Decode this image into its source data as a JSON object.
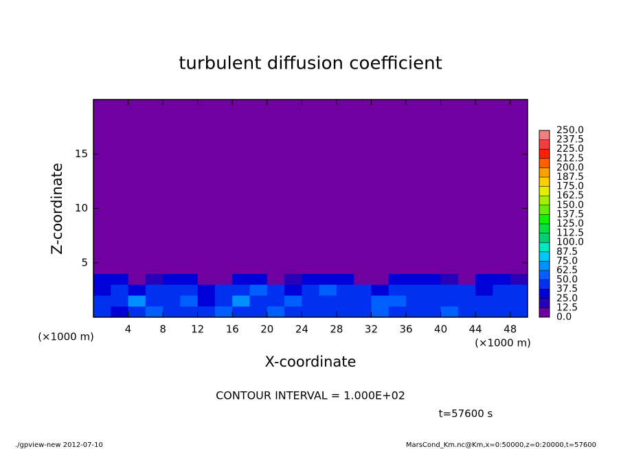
{
  "chart_data": {
    "type": "heatmap",
    "title": "turbulent diffusion coefficient",
    "x_label": "X-coordinate",
    "y_label": "Z-coordinate",
    "x_unit": "(×1000 m)",
    "y_unit": "(×1000 m)",
    "xlim": [
      0,
      50
    ],
    "ylim": [
      0,
      20
    ],
    "xticks": [
      4,
      8,
      12,
      16,
      20,
      24,
      28,
      32,
      36,
      40,
      44,
      48
    ],
    "yticks": [
      5,
      10,
      15
    ],
    "xbins": [
      0,
      2,
      4,
      6,
      8,
      10,
      12,
      14,
      16,
      18,
      20,
      22,
      24,
      26,
      28,
      30,
      32,
      34,
      36,
      38,
      40,
      42,
      44,
      46,
      48,
      50
    ],
    "ybins": [
      0,
      1,
      2,
      3,
      4,
      20
    ],
    "values": [
      [
        40,
        35,
        45,
        50,
        40,
        38,
        42,
        55,
        45,
        40,
        60,
        45,
        40,
        42,
        38,
        45,
        50,
        40,
        42,
        45,
        55,
        40,
        38,
        42,
        45
      ],
      [
        38,
        45,
        65,
        40,
        42,
        50,
        35,
        45,
        70,
        40,
        45,
        55,
        40,
        48,
        42,
        40,
        50,
        60,
        45,
        40,
        42,
        48,
        40,
        38,
        45
      ],
      [
        35,
        40,
        30,
        38,
        45,
        40,
        35,
        42,
        48,
        55,
        40,
        35,
        45,
        50,
        38,
        42,
        35,
        45,
        40,
        38,
        45,
        40,
        35,
        42,
        40
      ],
      [
        30,
        25,
        10,
        20,
        30,
        25,
        10,
        5,
        30,
        35,
        10,
        20,
        30,
        35,
        25,
        10,
        5,
        30,
        35,
        30,
        20,
        10,
        30,
        25,
        15
      ],
      [
        0,
        0,
        0,
        0,
        0,
        0,
        0,
        0,
        0,
        0,
        0,
        0,
        0,
        0,
        0,
        0,
        0,
        0,
        0,
        0,
        0,
        0,
        0,
        0,
        0
      ]
    ],
    "levels": [
      {
        "value": 0,
        "label": "0.0"
      },
      {
        "value": 12.5,
        "label": "12.5"
      },
      {
        "value": 25,
        "label": "25.0"
      },
      {
        "value": 37.5,
        "label": "37.5"
      },
      {
        "value": 50,
        "label": "50.0"
      },
      {
        "value": 62.5,
        "label": "62.5"
      },
      {
        "value": 75,
        "label": "75.0"
      },
      {
        "value": 87.5,
        "label": "87.5"
      },
      {
        "value": 100,
        "label": "100.0"
      },
      {
        "value": 112.5,
        "label": "112.5"
      },
      {
        "value": 125,
        "label": "125.0"
      },
      {
        "value": 137.5,
        "label": "137.5"
      },
      {
        "value": 150,
        "label": "150.0"
      },
      {
        "value": 162.5,
        "label": "162.5"
      },
      {
        "value": 175,
        "label": "175.0"
      },
      {
        "value": 187.5,
        "label": "187.5"
      },
      {
        "value": 200,
        "label": "200.0"
      },
      {
        "value": 212.5,
        "label": "212.5"
      },
      {
        "value": 225,
        "label": "225.0"
      },
      {
        "value": 237.5,
        "label": "237.5"
      },
      {
        "value": 250,
        "label": "250.0"
      }
    ],
    "colors": [
      "#7000a0",
      "#2800b8",
      "#0000d8",
      "#0030f0",
      "#0060ff",
      "#0090ff",
      "#00c8ff",
      "#00e8c0",
      "#00d070",
      "#00e040",
      "#10f000",
      "#60f000",
      "#a0f000",
      "#e0f000",
      "#ffd000",
      "#ffa000",
      "#ff6000",
      "#ff2000",
      "#f04040",
      "#f08080"
    ],
    "contour_interval": "CONTOUR INTERVAL = 1.000E+02",
    "time_label": "t=57600 s",
    "footer_left": "./gpview-new  2012-07-10",
    "footer_right": "MarsCond_Km.nc@Km,x=0:50000,z=0:20000,t=57600"
  }
}
